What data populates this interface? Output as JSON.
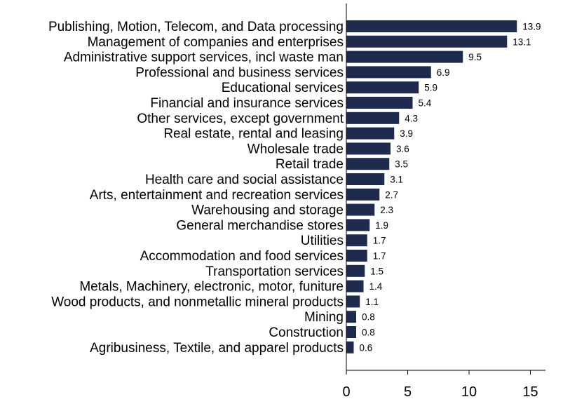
{
  "chart_data": {
    "type": "bar",
    "orientation": "horizontal",
    "categories": [
      "Publishing, Motion, Telecom, and Data processing",
      "Management of companies and enterprises",
      "Administrative support services, incl waste man",
      "Professional and business services",
      "Educational services",
      "Financial and insurance services",
      "Other services, except government",
      "Real estate, rental and leasing",
      "Wholesale trade",
      "Retail trade",
      "Health care and social assistance",
      "Arts, entertainment and recreation services",
      "Warehousing and storage",
      "General merchandise stores",
      "Utilities",
      "Accommodation and food services",
      "Transportation services",
      "Metals, Machinery, electronic, motor, funiture",
      "Wood products, and nonmetallic mineral products",
      "Mining",
      "Construction",
      "Agribusiness, Textile, and apparel products"
    ],
    "values": [
      13.9,
      13.1,
      9.5,
      6.9,
      5.9,
      5.4,
      4.3,
      3.9,
      3.6,
      3.5,
      3.1,
      2.7,
      2.3,
      1.9,
      1.7,
      1.7,
      1.5,
      1.4,
      1.1,
      0.8,
      0.8,
      0.6
    ],
    "value_labels": [
      "13.9",
      "13.1",
      "9.5",
      "6.9",
      "5.9",
      "5.4",
      "4.3",
      "3.9",
      "3.6",
      "3.5",
      "3.1",
      "2.7",
      "2.3",
      "1.9",
      "1.7",
      "1.7",
      "1.5",
      "1.4",
      "1.1",
      "0.8",
      "0.8",
      "0.6"
    ],
    "x_ticks": [
      0,
      5,
      10,
      15
    ],
    "x_tick_labels": [
      "0",
      "5",
      "10",
      "15"
    ],
    "xlim": [
      0,
      16
    ],
    "title": "",
    "xlabel": "",
    "ylabel": "",
    "grid": false,
    "legend": "none",
    "bar_color": "#1f2a4f",
    "axis_color": "#000000",
    "text_color": "#000000"
  }
}
